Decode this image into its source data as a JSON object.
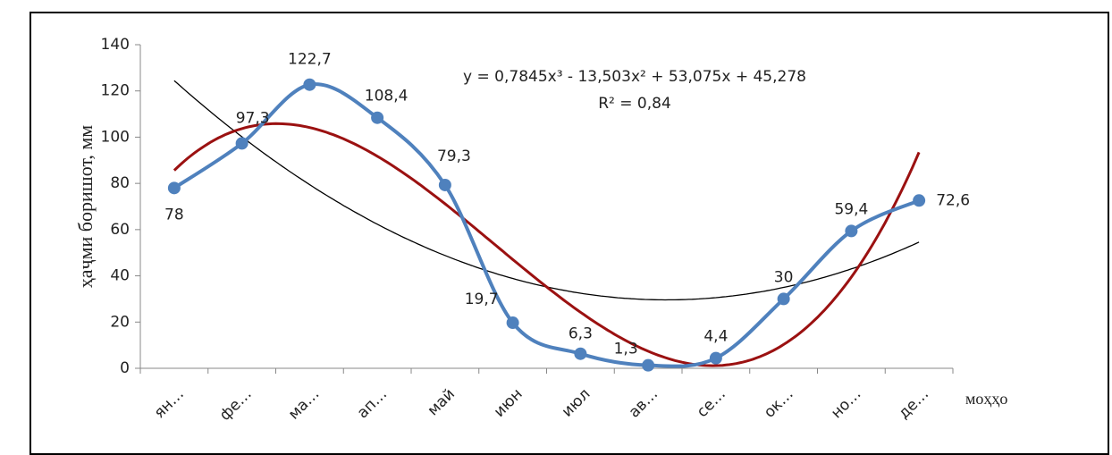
{
  "chart_data": {
    "type": "line",
    "categories": [
      "ян…",
      "фе…",
      "ма…",
      "ап…",
      "май",
      "июн",
      "июл",
      "ав…",
      "се…",
      "ок…",
      "но…",
      "де…"
    ],
    "series": [
      {
        "name": null,
        "color": "#4f81bd",
        "values": [
          78,
          97.3,
          122.7,
          108.4,
          79.3,
          19.7,
          6.3,
          1.3,
          4.4,
          30,
          59.4,
          72.6
        ],
        "value_labels": [
          "78",
          "97,3",
          "122,7",
          "108,4",
          "79,3",
          "19,7",
          "6,3",
          "1,3",
          "4,4",
          "30",
          "59,4",
          "72,6"
        ]
      }
    ],
    "ylim": [
      0,
      140
    ],
    "yticks": [
      0,
      20,
      40,
      60,
      80,
      100,
      120,
      140
    ],
    "y_label": "ҳаҷми боришот, мм",
    "x_label": "моҳҳо",
    "trendlines": [
      {
        "order": 3,
        "color": "#9b1111",
        "equation": "y = 0,7845x³ - 13,503x² + 53,075x + 45,278",
        "r_squared": "R² = 0,84"
      },
      {
        "order": 2,
        "color": "#000000"
      }
    ]
  }
}
